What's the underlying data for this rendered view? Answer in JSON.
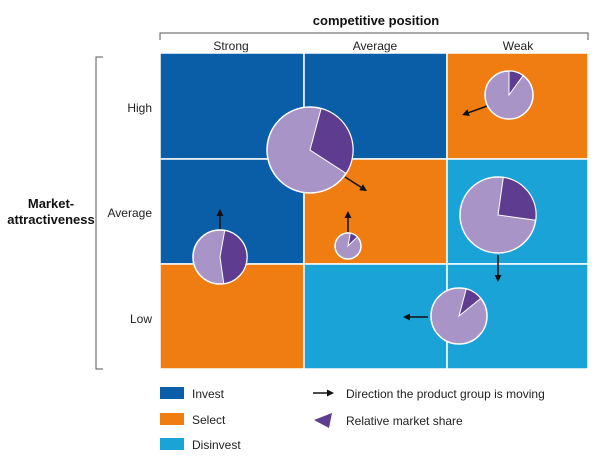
{
  "header": {
    "column_axis_title": "competitive position",
    "columns": [
      "Strong",
      "Average",
      "Weak"
    ]
  },
  "row_axis": {
    "title_lines": [
      "Market-",
      "attractiveness"
    ],
    "rows": [
      "High",
      "Average",
      "Low"
    ]
  },
  "colors": {
    "invest": "#0a5ea8",
    "select": "#ef7d12",
    "disinvest": "#1aa3d6",
    "pie_base": "#a894c6",
    "pie_share": "#5e3c8f",
    "arrow": "#111111",
    "grid_line": "#ffffff"
  },
  "grid": {
    "cells": [
      [
        "invest",
        "invest",
        "select"
      ],
      [
        "invest",
        "select",
        "disinvest"
      ],
      [
        "select",
        "disinvest",
        "disinvest"
      ]
    ]
  },
  "legend": {
    "items": [
      {
        "key": "invest",
        "label": "Invest"
      },
      {
        "key": "select",
        "label": "Select"
      },
      {
        "key": "disinvest",
        "label": "Disinvest"
      }
    ],
    "symbols": [
      {
        "icon": "arrow-icon",
        "label": "Direction the product group is moving"
      },
      {
        "icon": "wedge-icon",
        "label": "Relative market share"
      }
    ]
  },
  "product_groups": [
    {
      "share": 0.1,
      "direction": "down-left"
    },
    {
      "share": 0.3,
      "direction": "down-right"
    },
    {
      "share": 0.45,
      "direction": "up"
    },
    {
      "share": 0.1,
      "direction": "up"
    },
    {
      "share": 0.25,
      "direction": "down"
    },
    {
      "share": 0.1,
      "direction": "left"
    }
  ]
}
